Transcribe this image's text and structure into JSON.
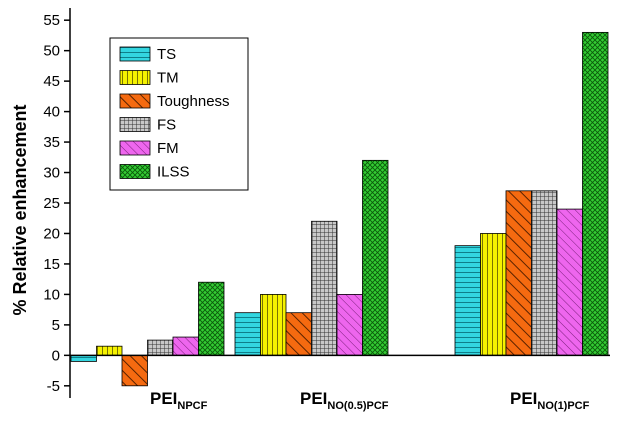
{
  "chart_data": {
    "type": "bar",
    "title": "",
    "xlabel": "",
    "ylabel": "% Relative enhancement",
    "ylim": [
      -7,
      57
    ],
    "yticks": [
      -5,
      0,
      5,
      10,
      15,
      20,
      25,
      30,
      35,
      40,
      45,
      50,
      55
    ],
    "categories": [
      {
        "main": "PEI",
        "sub": "NPCF"
      },
      {
        "main": "PEI",
        "sub": "NO(0.5)PCF"
      },
      {
        "main": "PEI",
        "sub": "NO(1)PCF"
      }
    ],
    "series": [
      {
        "name": "TS",
        "color": "#33d6e0",
        "pattern": "horizontal-lines",
        "values": [
          -1,
          7,
          18
        ]
      },
      {
        "name": "TM",
        "color": "#f5f200",
        "pattern": "vertical-lines",
        "values": [
          1.5,
          10,
          20
        ]
      },
      {
        "name": "Toughness",
        "color": "#f56a10",
        "pattern": "diagonal-lines",
        "values": [
          -5,
          7,
          27
        ]
      },
      {
        "name": "FS",
        "color": "#b4b4b4",
        "pattern": "grid",
        "values": [
          2.5,
          22,
          27
        ]
      },
      {
        "name": "FM",
        "color": "#ee66ee",
        "pattern": "diagonal-lines",
        "values": [
          3,
          10,
          24
        ]
      },
      {
        "name": "ILSS",
        "color": "#33cc33",
        "pattern": "crosshatch",
        "values": [
          12,
          32,
          53
        ]
      }
    ],
    "legend": "top-left",
    "grid": false
  }
}
